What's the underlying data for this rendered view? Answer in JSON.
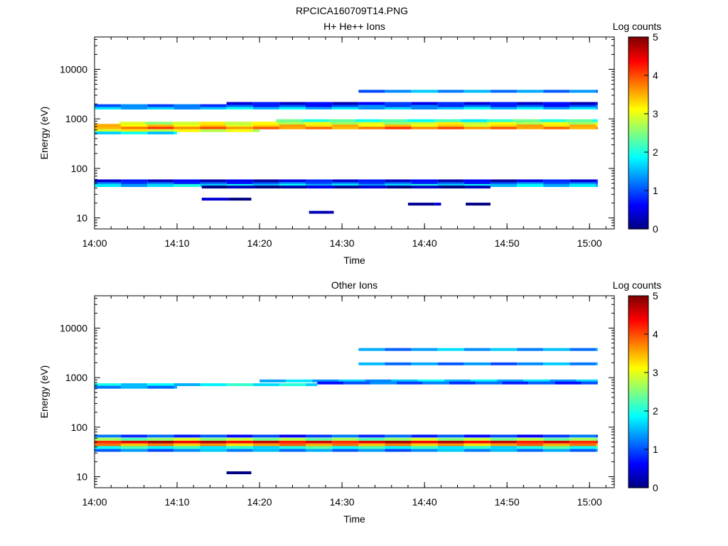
{
  "figure_title": "RPCICA160709T14.PNG",
  "chart_data": [
    {
      "type": "heatmap",
      "title": "H+ He++ Ions",
      "xlabel": "Time",
      "ylabel": "Energy (eV)",
      "x_ticks": [
        "14:00",
        "14:10",
        "14:20",
        "14:30",
        "14:40",
        "14:50",
        "15:00"
      ],
      "y_ticks": [
        "10",
        "100",
        "1000",
        "10000"
      ],
      "y_scale": "log",
      "ylim": [
        6,
        45000
      ],
      "xlim": [
        "14:00",
        "15:03"
      ],
      "colorbar": {
        "label": "Log counts",
        "ticks": [
          "0",
          "1",
          "2",
          "3",
          "4",
          "5"
        ],
        "range": [
          0,
          5
        ]
      },
      "bands": [
        {
          "energy": 660,
          "start": "14:00",
          "end": "15:01",
          "level": 3.8
        },
        {
          "energy": 740,
          "start": "14:00",
          "end": "15:01",
          "level": 3.3
        },
        {
          "energy": 820,
          "start": "14:03",
          "end": "15:01",
          "level": 2.9
        },
        {
          "energy": 580,
          "start": "14:00",
          "end": "14:20",
          "level": 3.0
        },
        {
          "energy": 520,
          "start": "14:00",
          "end": "14:10",
          "level": 1.9
        },
        {
          "energy": 920,
          "start": "14:22",
          "end": "15:01",
          "level": 2.1
        },
        {
          "energy": 1650,
          "start": "14:00",
          "end": "15:01",
          "level": 1.6
        },
        {
          "energy": 1850,
          "start": "14:00",
          "end": "15:01",
          "level": 1.0
        },
        {
          "energy": 2050,
          "start": "14:16",
          "end": "15:01",
          "level": 0.6
        },
        {
          "energy": 3600,
          "start": "14:32",
          "end": "15:01",
          "level": 1.3
        },
        {
          "energy": 50,
          "start": "14:00",
          "end": "15:01",
          "level": 1.1
        },
        {
          "energy": 45,
          "start": "14:00",
          "end": "15:01",
          "level": 1.7
        },
        {
          "energy": 56,
          "start": "14:00",
          "end": "15:01",
          "level": 0.5
        },
        {
          "energy": 42,
          "start": "14:13",
          "end": "14:48",
          "level": 0.2
        },
        {
          "energy": 24,
          "start": "14:13",
          "end": "14:19",
          "level": 0.1
        },
        {
          "energy": 13,
          "start": "14:26",
          "end": "14:29",
          "level": 0.1
        },
        {
          "energy": 19,
          "start": "14:38",
          "end": "14:42",
          "level": 0.1
        },
        {
          "energy": 19,
          "start": "14:45",
          "end": "14:48",
          "level": 0.1
        }
      ]
    },
    {
      "type": "heatmap",
      "title": "Other Ions",
      "xlabel": "Time",
      "ylabel": "Energy (eV)",
      "x_ticks": [
        "14:00",
        "14:10",
        "14:20",
        "14:30",
        "14:40",
        "14:50",
        "15:00"
      ],
      "y_ticks": [
        "10",
        "100",
        "1000",
        "10000"
      ],
      "y_scale": "log",
      "ylim": [
        6,
        45000
      ],
      "xlim": [
        "14:00",
        "15:03"
      ],
      "colorbar": {
        "label": "Log counts",
        "ticks": [
          "0",
          "1",
          "2",
          "3",
          "4",
          "5"
        ],
        "range": [
          0,
          5
        ]
      },
      "bands": [
        {
          "energy": 50,
          "start": "14:00",
          "end": "15:01",
          "level": 4.5
        },
        {
          "energy": 44,
          "start": "14:00",
          "end": "15:01",
          "level": 3.6
        },
        {
          "energy": 57,
          "start": "14:00",
          "end": "15:01",
          "level": 2.6
        },
        {
          "energy": 39,
          "start": "14:00",
          "end": "15:01",
          "level": 2.0
        },
        {
          "energy": 34,
          "start": "14:00",
          "end": "15:01",
          "level": 1.3
        },
        {
          "energy": 66,
          "start": "14:00",
          "end": "15:01",
          "level": 0.9
        },
        {
          "energy": 720,
          "start": "14:00",
          "end": "14:27",
          "level": 1.8
        },
        {
          "energy": 640,
          "start": "14:00",
          "end": "14:10",
          "level": 1.2
        },
        {
          "energy": 860,
          "start": "14:20",
          "end": "15:01",
          "level": 1.6
        },
        {
          "energy": 780,
          "start": "14:27",
          "end": "15:01",
          "level": 1.0
        },
        {
          "energy": 1900,
          "start": "14:32",
          "end": "15:01",
          "level": 1.3
        },
        {
          "energy": 3700,
          "start": "14:32",
          "end": "15:01",
          "level": 1.4
        },
        {
          "energy": 12,
          "start": "14:16",
          "end": "14:19",
          "level": 0.1
        }
      ]
    }
  ]
}
